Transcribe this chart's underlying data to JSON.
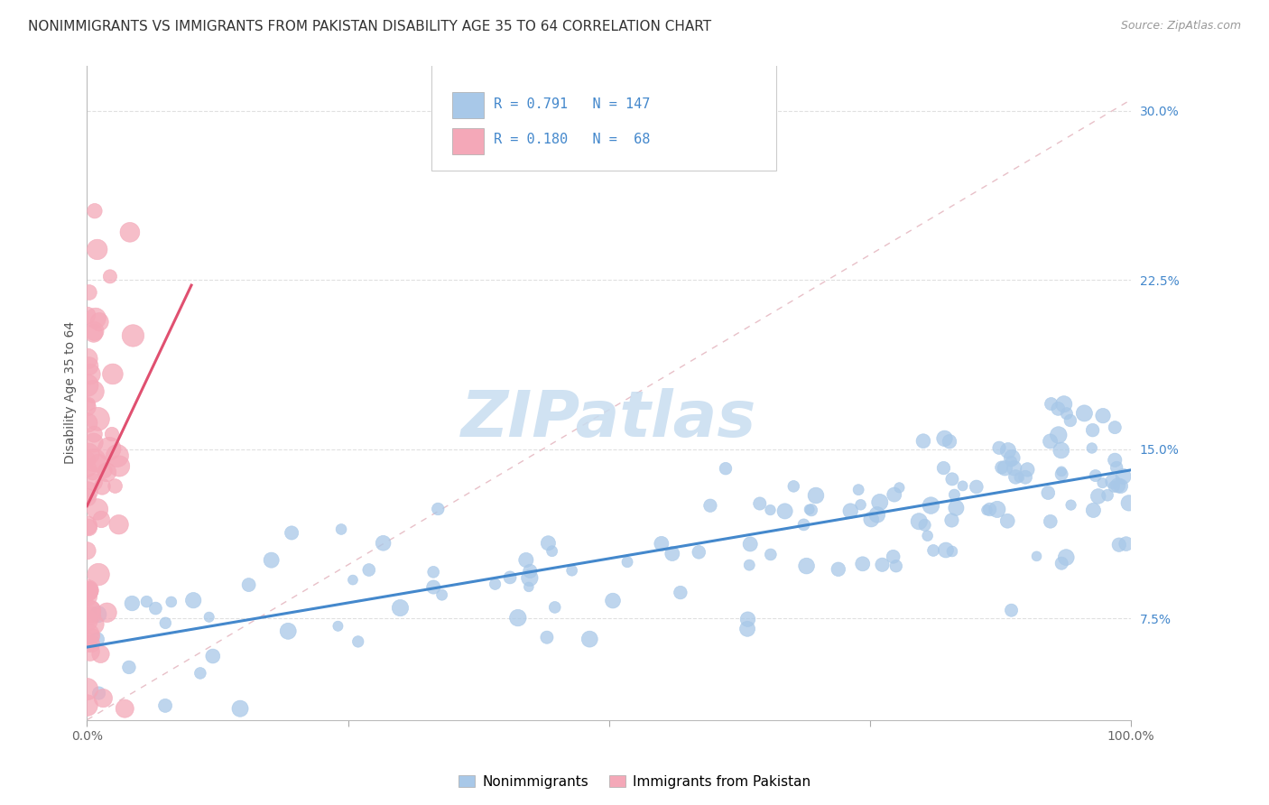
{
  "title": "NONIMMIGRANTS VS IMMIGRANTS FROM PAKISTAN DISABILITY AGE 35 TO 64 CORRELATION CHART",
  "source_text": "Source: ZipAtlas.com",
  "ylabel": "Disability Age 35 to 64",
  "watermark": "ZIPatlas",
  "blue_R": 0.791,
  "blue_N": 147,
  "pink_R": 0.18,
  "pink_N": 68,
  "legend_label_blue": "Nonimmigrants",
  "legend_label_pink": "Immigrants from Pakistan",
  "blue_color": "#a8c8e8",
  "pink_color": "#f4a8b8",
  "blue_line_color": "#4488cc",
  "pink_line_color": "#e05070",
  "ref_line_color": "#cccccc",
  "background_color": "#ffffff",
  "xlim": [
    0,
    1.0
  ],
  "ylim": [
    0.03,
    0.32
  ],
  "yticks": [
    0.075,
    0.15,
    0.225,
    0.3
  ],
  "ytick_labels": [
    "7.5%",
    "15.0%",
    "22.5%",
    "30.0%"
  ],
  "blue_tick_color": "#4488cc",
  "grid_color": "#e0e0e0",
  "title_fontsize": 11,
  "axis_label_fontsize": 10,
  "tick_fontsize": 10,
  "legend_fontsize": 11,
  "watermark_fontsize": 52,
  "watermark_color": "#c8ddf0",
  "figsize": [
    14.06,
    8.92
  ],
  "dpi": 100
}
